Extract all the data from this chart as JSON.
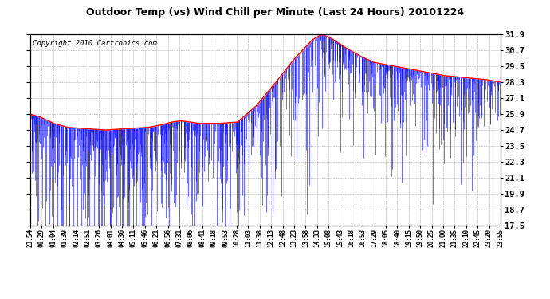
{
  "title": "Outdoor Temp (vs) Wind Chill per Minute (Last 24 Hours) 20101224",
  "copyright": "Copyright 2010 Cartronics.com",
  "background_color": "#ffffff",
  "plot_bg_color": "#ffffff",
  "grid_color": "#aaaaaa",
  "bar_color": "#0000ff",
  "line_color": "#ff0000",
  "yticks": [
    17.5,
    18.7,
    19.9,
    21.1,
    22.3,
    23.5,
    24.7,
    25.9,
    27.1,
    28.3,
    29.5,
    30.7,
    31.9
  ],
  "ylim": [
    17.5,
    31.9
  ],
  "xtick_labels": [
    "23:54",
    "00:29",
    "01:04",
    "01:39",
    "02:14",
    "02:51",
    "03:26",
    "04:01",
    "04:36",
    "05:11",
    "05:46",
    "06:21",
    "06:56",
    "07:31",
    "08:06",
    "08:41",
    "09:18",
    "09:53",
    "10:28",
    "11:03",
    "11:38",
    "12:13",
    "12:48",
    "13:23",
    "13:58",
    "14:33",
    "15:08",
    "15:43",
    "16:18",
    "16:53",
    "17:29",
    "18:05",
    "18:40",
    "19:15",
    "19:50",
    "20:25",
    "21:00",
    "21:35",
    "22:10",
    "22:45",
    "23:20",
    "23:55"
  ],
  "n_points": 1440,
  "title_fontsize": 9,
  "copyright_fontsize": 6.5,
  "ytick_fontsize": 7.5,
  "xtick_fontsize": 5.5
}
